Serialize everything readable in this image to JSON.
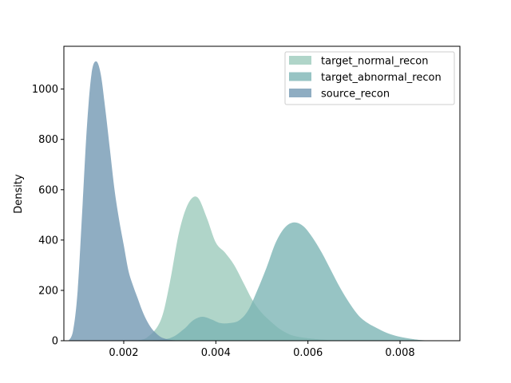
{
  "chart_data": {
    "type": "area",
    "title": "",
    "xlabel": "",
    "ylabel": "Density",
    "xlim": [
      0.0007,
      0.0093
    ],
    "ylim": [
      0,
      1170
    ],
    "grid": false,
    "legend_position": "top-right",
    "x_ticks": [
      0.002,
      0.004,
      0.006,
      0.008
    ],
    "x_tick_labels": [
      "0.002",
      "0.004",
      "0.006",
      "0.008"
    ],
    "y_ticks": [
      0,
      200,
      400,
      600,
      800,
      1000
    ],
    "y_tick_labels": [
      "0",
      "200",
      "400",
      "600",
      "800",
      "1000"
    ],
    "series": [
      {
        "name": "target_normal_recon",
        "color": "#b0d5c9",
        "opacity": 1.0,
        "x": [
          0.0022,
          0.0025,
          0.0028,
          0.003,
          0.0032,
          0.0034,
          0.0036,
          0.0038,
          0.004,
          0.0042,
          0.0044,
          0.0046,
          0.0048,
          0.005,
          0.0052,
          0.0054,
          0.0056,
          0.0058,
          0.006,
          0.0062,
          0.0064,
          0.0066
        ],
        "y": [
          0,
          12,
          80,
          230,
          430,
          545,
          570,
          490,
          390,
          350,
          300,
          230,
          160,
          110,
          75,
          45,
          25,
          15,
          10,
          6,
          3,
          0
        ]
      },
      {
        "name": "target_abnormal_recon",
        "color": "#7ab3b3",
        "opacity": 0.78,
        "x": [
          0.0025,
          0.003,
          0.0033,
          0.0035,
          0.0037,
          0.0039,
          0.0041,
          0.0043,
          0.0045,
          0.0047,
          0.0049,
          0.0051,
          0.0053,
          0.0055,
          0.0057,
          0.0059,
          0.0061,
          0.0063,
          0.0065,
          0.0067,
          0.0069,
          0.0071,
          0.0073,
          0.0075,
          0.0077,
          0.0079,
          0.0081,
          0.0083,
          0.0085,
          0.0088
        ],
        "y": [
          0,
          10,
          45,
          80,
          95,
          85,
          70,
          70,
          80,
          120,
          200,
          290,
          390,
          450,
          470,
          455,
          410,
          350,
          280,
          210,
          150,
          100,
          70,
          50,
          32,
          20,
          12,
          6,
          2,
          0
        ]
      },
      {
        "name": "source_recon",
        "color": "#6f96b1",
        "opacity": 0.78,
        "x": [
          0.0008,
          0.0009,
          0.001,
          0.0011,
          0.0012,
          0.0013,
          0.0014,
          0.0015,
          0.0016,
          0.0017,
          0.0018,
          0.0019,
          0.002,
          0.0021,
          0.0022,
          0.0023,
          0.0024,
          0.0025,
          0.0026,
          0.0027,
          0.0028,
          0.0029,
          0.003,
          0.0031,
          0.0032
        ],
        "y": [
          0,
          40,
          200,
          520,
          850,
          1060,
          1110,
          1060,
          920,
          760,
          600,
          480,
          380,
          280,
          220,
          170,
          120,
          80,
          50,
          30,
          15,
          8,
          4,
          2,
          0
        ]
      }
    ]
  }
}
